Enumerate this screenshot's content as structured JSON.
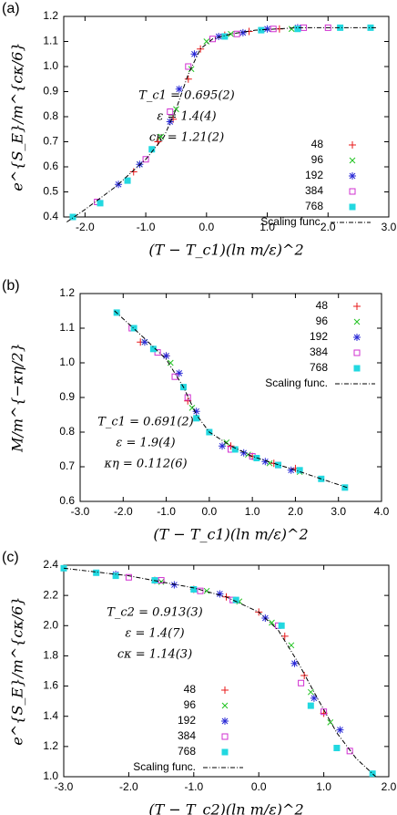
{
  "chart_data": [
    {
      "type": "scatter",
      "panel": "(a)",
      "ylabel": "e^{S_E}/m^{cκ/6}",
      "xlabel": "(T − T_c1)(ln m/ε)^2",
      "annotations": [
        "T_c1 = 0.695(2)",
        "ε = 1.4(4)",
        "cκ = 1.21(2)"
      ],
      "legend_position": "center right",
      "xlim": [
        -2.35,
        3.0
      ],
      "ylim": [
        0.4,
        1.2
      ],
      "xticks": [
        {
          "value": -2,
          "label": "-2.0"
        },
        {
          "value": -1,
          "label": "-1.0"
        },
        {
          "value": 0,
          "label": "0.0"
        },
        {
          "value": 1,
          "label": "1.0"
        },
        {
          "value": 2,
          "label": "2.0"
        },
        {
          "value": 3,
          "label": "3.0"
        }
      ],
      "yticks": [
        0.4,
        0.5,
        0.6,
        0.7,
        0.8,
        0.9,
        {
          "value": 1,
          "label": "1.0"
        },
        1.1,
        1.2
      ],
      "series": [
        {
          "name": "48",
          "color": "#e8181a",
          "marker": "plus",
          "x": [
            -1.2,
            -0.8,
            -0.55,
            -0.3,
            -0.1,
            0.3,
            0.7,
            1.2
          ],
          "values": [
            0.58,
            0.7,
            0.79,
            0.95,
            1.07,
            1.125,
            1.14,
            1.15
          ]
        },
        {
          "name": "96",
          "color": "#22c322",
          "marker": "cross",
          "x": [
            -1.1,
            -0.75,
            -0.5,
            -0.25,
            0,
            0.4,
            0.9,
            1.4
          ],
          "values": [
            0.61,
            0.72,
            0.83,
            0.99,
            1.1,
            1.13,
            1.145,
            1.15
          ]
        },
        {
          "name": "192",
          "color": "#2a2ad6",
          "marker": "star",
          "x": [
            -1.45,
            -1.1,
            -0.6,
            -0.45,
            -0.2,
            0.2,
            0.6,
            1.0,
            1.5
          ],
          "values": [
            0.53,
            0.61,
            0.78,
            0.91,
            1.05,
            1.12,
            1.135,
            1.15,
            1.155
          ]
        },
        {
          "name": "384",
          "color": "#d030d0",
          "marker": "square-open",
          "x": [
            -1.8,
            -1.0,
            -0.6,
            -0.3,
            0.1,
            0.5,
            1.1,
            1.6,
            2.0
          ],
          "values": [
            0.46,
            0.63,
            0.82,
            1.0,
            1.11,
            1.13,
            1.15,
            1.155,
            1.155
          ]
        },
        {
          "name": "768",
          "color": "#22d8e0",
          "marker": "square-filled",
          "x": [
            -2.2,
            -1.75,
            -1.3,
            -0.9,
            0.3,
            0.9,
            1.5,
            2.2,
            2.7
          ],
          "values": [
            0.4,
            0.455,
            0.545,
            0.67,
            1.12,
            1.145,
            1.15,
            1.155,
            1.155
          ]
        },
        {
          "name": "Scaling func.",
          "color": "#000000",
          "line_style": "dash-dot",
          "x": [
            -2.3,
            -2.0,
            -1.5,
            -1.0,
            -0.7,
            -0.5,
            -0.3,
            -0.1,
            0.1,
            0.4,
            0.8,
            1.5,
            2.0,
            2.8
          ],
          "values": [
            0.38,
            0.43,
            0.52,
            0.63,
            0.72,
            0.83,
            0.97,
            1.07,
            1.11,
            1.13,
            1.145,
            1.155,
            1.155,
            1.155
          ]
        }
      ]
    },
    {
      "type": "scatter",
      "panel": "(b)",
      "ylabel": "M/m^{−κη/2}",
      "xlabel": "(T − T_c1)(ln m/ε)^2",
      "annotations": [
        "T_c1 = 0.691(2)",
        "ε = 1.9(4)",
        "κη = 0.112(6)"
      ],
      "legend_position": "upper right",
      "xlim": [
        -3,
        4
      ],
      "ylim": [
        0.6,
        1.2
      ],
      "xticks": [
        {
          "value": -3,
          "label": "-3.0"
        },
        {
          "value": -2,
          "label": "-2.0"
        },
        {
          "value": -1,
          "label": "-1.0"
        },
        {
          "value": 0,
          "label": "0.0"
        },
        {
          "value": 1,
          "label": "1.0"
        },
        {
          "value": 2,
          "label": "2.0"
        },
        {
          "value": 3,
          "label": "3.0"
        },
        {
          "value": 4,
          "label": "4.0"
        }
      ],
      "yticks": [
        0.6,
        0.7,
        0.8,
        0.9,
        {
          "value": 1,
          "label": "1.0"
        },
        1.1,
        1.2
      ],
      "series": [
        {
          "name": "48",
          "color": "#e8181a",
          "marker": "plus",
          "x": [
            -1.6,
            -1.0,
            -0.5,
            0.5,
            1.0,
            1.5,
            2.0
          ],
          "values": [
            1.06,
            1.02,
            0.89,
            0.76,
            0.73,
            0.71,
            0.695
          ]
        },
        {
          "name": "96",
          "color": "#22c322",
          "marker": "cross",
          "x": [
            -1.5,
            -0.9,
            -0.4,
            0.4,
            0.9,
            1.4,
            2.1
          ],
          "values": [
            1.06,
            1.0,
            0.87,
            0.77,
            0.735,
            0.71,
            0.685
          ]
        },
        {
          "name": "192",
          "color": "#2a2ad6",
          "marker": "star",
          "x": [
            -1.5,
            -1.0,
            -0.7,
            -0.3,
            0.3,
            0.8,
            1.3,
            1.9
          ],
          "values": [
            1.06,
            1.02,
            0.97,
            0.86,
            0.76,
            0.74,
            0.715,
            0.69
          ]
        },
        {
          "name": "384",
          "color": "#d030d0",
          "marker": "square-open",
          "x": [
            -1.8,
            -1.2,
            -0.8,
            -0.5,
            0.5,
            1.0,
            1.6
          ],
          "values": [
            1.1,
            1.03,
            0.96,
            0.9,
            0.75,
            0.73,
            0.705
          ]
        },
        {
          "name": "768",
          "color": "#22d8e0",
          "marker": "square-filled",
          "x": [
            -2.15,
            -1.75,
            -1.3,
            -0.6,
            -0.3,
            0.0,
            0.6,
            1.1,
            1.6,
            2.1,
            2.6,
            3.15
          ],
          "values": [
            1.145,
            1.1,
            1.04,
            0.93,
            0.84,
            0.8,
            0.75,
            0.725,
            0.705,
            0.69,
            0.665,
            0.64
          ]
        },
        {
          "name": "Scaling func.",
          "color": "#000000",
          "line_style": "dash-dot",
          "x": [
            -2.2,
            -1.5,
            -1.0,
            -0.6,
            -0.3,
            0,
            0.5,
            1.0,
            2.0,
            3.2
          ],
          "values": [
            1.15,
            1.07,
            1.01,
            0.93,
            0.85,
            0.8,
            0.76,
            0.73,
            0.69,
            0.64
          ]
        }
      ]
    },
    {
      "type": "scatter",
      "panel": "(c)",
      "ylabel": "e^{S_E}/m^{cκ/6}",
      "xlabel": "(T − T_c2)(ln m/ε)^2",
      "annotations": [
        "T_c2 = 0.913(3)",
        "ε = 1.4(7)",
        "cκ = 1.14(3)"
      ],
      "legend_position": "lower center",
      "xlim": [
        -3,
        2
      ],
      "ylim": [
        1.0,
        2.4
      ],
      "xticks": [
        {
          "value": -3,
          "label": "-3.0"
        },
        {
          "value": -2,
          "label": "-2.0"
        },
        {
          "value": -1,
          "label": "-1.0"
        },
        {
          "value": 0,
          "label": "0.0"
        },
        {
          "value": 1,
          "label": "1.0"
        },
        {
          "value": 2,
          "label": "2.0"
        }
      ],
      "yticks": [
        {
          "value": 1,
          "label": "1.0"
        },
        1.2,
        1.4,
        1.6,
        1.8,
        {
          "value": 2,
          "label": "2.0"
        },
        2.2,
        2.4
      ],
      "series": [
        {
          "name": "48",
          "color": "#e8181a",
          "marker": "plus",
          "x": [
            -1.6,
            -1.0,
            -0.5,
            0.0,
            0.4,
            0.7,
            1.0
          ],
          "values": [
            2.3,
            2.24,
            2.19,
            2.09,
            1.93,
            1.67,
            1.42
          ]
        },
        {
          "name": "96",
          "color": "#22c322",
          "marker": "cross",
          "x": [
            -1.5,
            -0.8,
            -0.3,
            0.2,
            0.5,
            0.8,
            1.1
          ],
          "values": [
            2.29,
            2.23,
            2.16,
            2.02,
            1.87,
            1.56,
            1.36
          ]
        },
        {
          "name": "192",
          "color": "#2a2ad6",
          "marker": "star",
          "x": [
            -2.2,
            -1.3,
            -0.6,
            0.1,
            0.55,
            0.85,
            1.25
          ],
          "values": [
            2.34,
            2.27,
            2.21,
            2.05,
            1.75,
            1.52,
            1.31
          ]
        },
        {
          "name": "384",
          "color": "#d030d0",
          "marker": "square-open",
          "x": [
            -2.0,
            -1.5,
            -0.9,
            -0.4,
            0.3,
            0.65,
            1.0,
            1.4
          ],
          "values": [
            2.32,
            2.3,
            2.23,
            2.17,
            2.0,
            1.62,
            1.43,
            1.17
          ]
        },
        {
          "name": "768",
          "color": "#22d8e0",
          "marker": "square-filled",
          "x": [
            -3.0,
            -2.5,
            -2.2,
            -1.6,
            -1.0,
            -0.35,
            0.35,
            0.8,
            1.2,
            1.75
          ],
          "values": [
            2.38,
            2.35,
            2.33,
            2.3,
            2.24,
            2.17,
            2.0,
            1.47,
            1.19,
            1.02
          ]
        },
        {
          "name": "Scaling func.",
          "color": "#000000",
          "line_style": "dash-dot",
          "x": [
            -3.0,
            -2.0,
            -1.0,
            -0.5,
            0,
            0.3,
            0.6,
            0.9,
            1.2,
            1.5,
            1.8
          ],
          "values": [
            2.38,
            2.33,
            2.25,
            2.19,
            2.09,
            1.97,
            1.76,
            1.52,
            1.29,
            1.12,
            1.0
          ]
        }
      ]
    }
  ]
}
